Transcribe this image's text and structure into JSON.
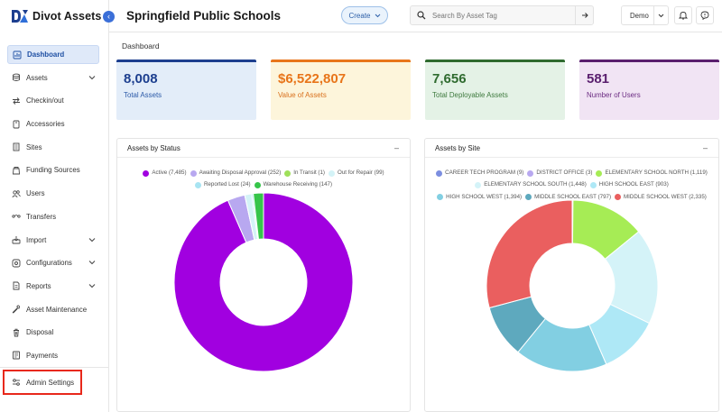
{
  "brand": {
    "name": "Divot Assets"
  },
  "sidebar": {
    "items": [
      {
        "label": "Dashboard",
        "icon": "dashboard-icon",
        "active": true,
        "chevron": false
      },
      {
        "label": "Assets",
        "icon": "assets-icon",
        "active": false,
        "chevron": true
      },
      {
        "label": "Checkin/out",
        "icon": "checkin-out-icon",
        "active": false,
        "chevron": false
      },
      {
        "label": "Accessories",
        "icon": "accessories-icon",
        "active": false,
        "chevron": false
      },
      {
        "label": "Sites",
        "icon": "sites-icon",
        "active": false,
        "chevron": false
      },
      {
        "label": "Funding Sources",
        "icon": "funding-sources-icon",
        "active": false,
        "chevron": false
      },
      {
        "label": "Users",
        "icon": "users-icon",
        "active": false,
        "chevron": false
      },
      {
        "label": "Transfers",
        "icon": "transfers-icon",
        "active": false,
        "chevron": false
      },
      {
        "label": "Import",
        "icon": "import-icon",
        "active": false,
        "chevron": true
      },
      {
        "label": "Configurations",
        "icon": "configurations-icon",
        "active": false,
        "chevron": true
      },
      {
        "label": "Reports",
        "icon": "reports-icon",
        "active": false,
        "chevron": true
      },
      {
        "label": "Asset Maintenance",
        "icon": "wrench-icon",
        "active": false,
        "chevron": false
      },
      {
        "label": "Disposal",
        "icon": "trash-icon",
        "active": false,
        "chevron": false
      },
      {
        "label": "Payments",
        "icon": "payments-icon",
        "active": false,
        "chevron": false
      }
    ],
    "admin_settings": "Admin Settings"
  },
  "topbar": {
    "org_title": "Springfield Public Schools",
    "create_label": "Create",
    "search_placeholder": "Search By Asset Tag",
    "user_label": "Demo"
  },
  "breadcrumb": "Dashboard",
  "kpis": [
    {
      "value": "8,008",
      "label": "Total Assets",
      "bg": "#e3edf9",
      "bar": "#1d3f8f",
      "value_color": "#1d3f8f",
      "label_color": "#2c5aa8"
    },
    {
      "value": "$6,522,807",
      "label": "Value of Assets",
      "bg": "#fdf5db",
      "bar": "#e8751a",
      "value_color": "#e8751a",
      "label_color": "#d9701c"
    },
    {
      "value": "7,656",
      "label": "Total Deployable Assets",
      "bg": "#e4f2e6",
      "bar": "#2f6b2f",
      "value_color": "#2f6b2f",
      "label_color": "#3e7a3e"
    },
    {
      "value": "581",
      "label": "Number of Users",
      "bg": "#f1e4f4",
      "bar": "#5a1f6e",
      "value_color": "#5a1f6e",
      "label_color": "#6b2b82"
    }
  ],
  "panels": {
    "status_title": "Assets by Status",
    "site_title": "Assets by Site",
    "minimize": "–"
  },
  "chart_data": [
    {
      "type": "pie",
      "title": "Assets by Status",
      "categories": [
        "Active",
        "Awaiting Disposal Approval",
        "In Transit",
        "Out for Repair",
        "Reported Lost",
        "Warehouse Receiving"
      ],
      "values": [
        7485,
        252,
        1,
        99,
        24,
        147
      ],
      "legend_labels": [
        "Active (7,485)",
        "Awaiting Disposal Approval (252)",
        "In Transit (1)",
        "Out for Repair (99)",
        "Reported Lost (24)",
        "Warehouse Receiving (147)"
      ],
      "colors": [
        "#a100e0",
        "#b8a8f0",
        "#9fe05a",
        "#d4f3f7",
        "#a8e4f2",
        "#36c54a"
      ],
      "donut": true,
      "legend_position": "top"
    },
    {
      "type": "pie",
      "title": "Assets by Site",
      "categories": [
        "CAREER TECH PROGRAM",
        "DISTRICT OFFICE",
        "ELEMENTARY SCHOOL NORTH",
        "ELEMENTARY SCHOOL SOUTH",
        "HIGH SCHOOL EAST",
        "HIGH SCHOOL WEST",
        "MIDDLE SCHOOL EAST",
        "MIDDLE SCHOOL WEST"
      ],
      "values": [
        9,
        3,
        1119,
        1448,
        903,
        1394,
        797,
        2335
      ],
      "legend_labels": [
        "CAREER TECH PROGRAM (9)",
        "DISTRICT OFFICE (3)",
        "ELEMENTARY SCHOOL NORTH (1,119)",
        "ELEMENTARY SCHOOL SOUTH (1,448)",
        "HIGH SCHOOL EAST (903)",
        "HIGH SCHOOL WEST (1,394)",
        "MIDDLE SCHOOL EAST (797)",
        "MIDDLE SCHOOL WEST (2,335)"
      ],
      "colors": [
        "#7c8ee0",
        "#b8a8f0",
        "#a6ec55",
        "#d4f3f8",
        "#aee8f6",
        "#82cfe2",
        "#5ea9be",
        "#ea5f5f"
      ],
      "donut": true,
      "legend_position": "top"
    }
  ]
}
